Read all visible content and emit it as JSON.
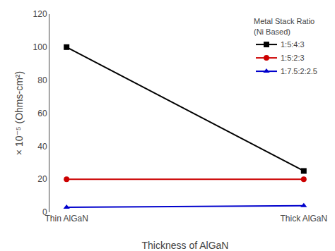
{
  "chart_data": {
    "type": "line",
    "categories": [
      "Thin AlGaN",
      "Thick AlGaN"
    ],
    "series": [
      {
        "name": "1:5:4:3",
        "color": "#000000",
        "marker": "square",
        "line_style": "solid",
        "values": [
          100,
          25
        ]
      },
      {
        "name": "1:5:2:3",
        "color": "#cc0000",
        "marker": "circle",
        "line_style": "solid",
        "values": [
          20,
          20
        ]
      },
      {
        "name": "1:7.5:2:2.5",
        "color": "#0000cc",
        "marker": "triangle-up",
        "line_style": "solid",
        "values": [
          3,
          4
        ]
      }
    ],
    "xlabel": "Thickness of AlGaN",
    "ylabel": "× 10⁻⁵ (Ohms-cm²)",
    "legend_title": "Metal Stack Ratio\n(Ni Based)",
    "ylim": [
      0,
      120
    ],
    "yticks": [
      0,
      20,
      40,
      60,
      80,
      100,
      120
    ],
    "grid": false,
    "legend": "upper right"
  }
}
